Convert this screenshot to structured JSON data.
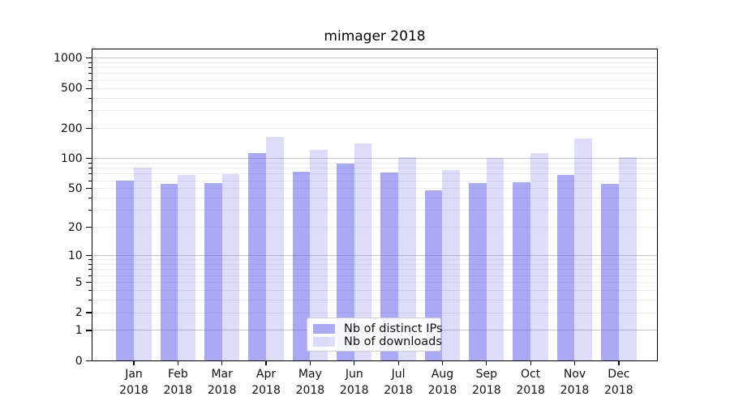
{
  "chart_data": {
    "type": "bar",
    "title": "mimager 2018",
    "x_months": [
      "Jan",
      "Feb",
      "Mar",
      "Apr",
      "May",
      "Jun",
      "Jul",
      "Aug",
      "Sep",
      "Oct",
      "Nov",
      "Dec"
    ],
    "x_year": "2018",
    "series": [
      {
        "name": "Nb of distinct IPs",
        "values": [
          60,
          56,
          57,
          113,
          74,
          89,
          73,
          48,
          57,
          58,
          68,
          56
        ],
        "color": "#5555e5",
        "alpha": 0.5
      },
      {
        "name": "Nb of downloads",
        "values": [
          81,
          68,
          70,
          165,
          122,
          141,
          103,
          77,
          102,
          114,
          159,
          104
        ],
        "color": "#5555e5",
        "alpha": 0.2
      }
    ],
    "y_ticks": [
      0,
      1,
      2,
      5,
      10,
      20,
      50,
      100,
      200,
      500,
      1000
    ],
    "y_scale": "log10(1+y)",
    "ylim": [
      0,
      1250
    ],
    "grid": true,
    "legend_position": "lower center"
  },
  "colors": {
    "major_grid": "#c6c6c6",
    "minor_grid": "#eaeaea",
    "spine": "#000000",
    "text": "#111111",
    "legend_border": "#cccccc",
    "background": "#ffffff"
  }
}
